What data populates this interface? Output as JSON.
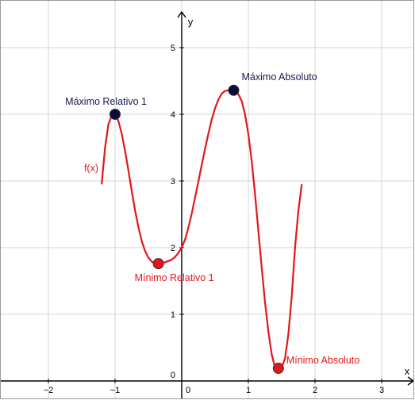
{
  "chart_data": {
    "type": "line",
    "title": "",
    "xlabel": "x",
    "ylabel": "y",
    "xlim": [
      -2.7,
      3.4
    ],
    "ylim": [
      -0.1,
      5.5
    ],
    "grid": true,
    "x_ticks": [
      -2,
      -1,
      0,
      1,
      2,
      3
    ],
    "y_ticks": [
      0,
      1,
      2,
      3,
      4,
      5
    ],
    "series": [
      {
        "name": "f(x)",
        "color": "#e3161b",
        "x": [
          -1.2,
          -1.15,
          -1.1,
          -1.05,
          -1.0,
          -0.95,
          -0.9,
          -0.85,
          -0.8,
          -0.75,
          -0.7,
          -0.65,
          -0.6,
          -0.55,
          -0.5,
          -0.45,
          -0.4,
          -0.35,
          -0.3,
          -0.25,
          -0.2,
          -0.15,
          -0.1,
          -0.05,
          0.0,
          0.05,
          0.1,
          0.15,
          0.2,
          0.25,
          0.3,
          0.35,
          0.4,
          0.45,
          0.5,
          0.55,
          0.6,
          0.65,
          0.7,
          0.75,
          0.8,
          0.85,
          0.9,
          0.95,
          1.0,
          1.05,
          1.1,
          1.15,
          1.2,
          1.25,
          1.3,
          1.35,
          1.4,
          1.45,
          1.5,
          1.55,
          1.6,
          1.65,
          1.7,
          1.75,
          1.8
        ],
        "y": [
          2.96,
          3.5,
          3.85,
          3.98,
          4.0,
          3.9,
          3.71,
          3.45,
          3.16,
          2.85,
          2.56,
          2.31,
          2.1,
          1.95,
          1.85,
          1.79,
          1.76,
          1.76,
          1.77,
          1.78,
          1.8,
          1.82,
          1.86,
          1.92,
          2.0,
          2.12,
          2.3,
          2.51,
          2.75,
          2.99,
          3.24,
          3.48,
          3.71,
          3.92,
          4.09,
          4.22,
          4.31,
          4.35,
          4.36,
          4.36,
          4.35,
          4.3,
          4.2,
          4.0,
          3.7,
          3.3,
          2.8,
          2.25,
          1.7,
          1.18,
          0.74,
          0.4,
          0.2,
          0.19,
          0.2,
          0.34,
          0.7,
          1.26,
          2.0,
          2.55,
          2.94
        ]
      }
    ],
    "points": [
      {
        "label": "Máximo Relativo 1",
        "x": -1.0,
        "y": 4.0,
        "color": "#0b0b3b",
        "label_color": "#1a1a4e",
        "anchor": "end"
      },
      {
        "label": "Máximo Absoluto",
        "x": 0.78,
        "y": 4.36,
        "color": "#0b0b3b",
        "label_color": "#1a1a4e",
        "anchor": "start"
      },
      {
        "label": "Mínimo Relativo 1",
        "x": -0.35,
        "y": 1.76,
        "color": "#e3161b",
        "label_color": "#e3161b",
        "anchor": "middle"
      },
      {
        "label": "Mínimo Absoluto",
        "x": 1.45,
        "y": 0.19,
        "color": "#e3161b",
        "label_color": "#e3161b",
        "anchor": "start"
      }
    ],
    "function_label": "f(x)"
  },
  "style": {
    "grid_color": "#d6d6d6",
    "axis_color": "#000000"
  }
}
